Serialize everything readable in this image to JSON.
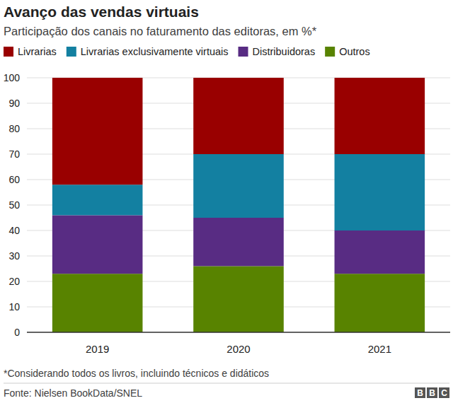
{
  "chart_data": {
    "type": "bar",
    "stacked": true,
    "title": "Avanço das vendas virtuais",
    "subtitle": "Participação dos canais no faturamento das editoras, em %*",
    "categories": [
      "2019",
      "2020",
      "2021"
    ],
    "series": [
      {
        "name": "Livrarias",
        "color": "#990000",
        "values": [
          42,
          30,
          30
        ]
      },
      {
        "name": "Livrarias exclusivamente virtuais",
        "color": "#1380a1",
        "values": [
          12,
          25,
          30
        ]
      },
      {
        "name": "Distribuidoras",
        "color": "#582c83",
        "values": [
          23,
          19,
          17
        ]
      },
      {
        "name": "Outros",
        "color": "#588300",
        "values": [
          23,
          26,
          23
        ]
      }
    ],
    "ylim": [
      0,
      100
    ],
    "yticks": [
      0,
      10,
      20,
      30,
      40,
      50,
      60,
      70,
      80,
      90,
      100
    ],
    "grid": true,
    "legend": "top",
    "note": "*Considerando todos os livros, incluindo técnicos e didáticos",
    "source": "Fonte: Nielsen BookData/SNEL",
    "logo": "BBC"
  }
}
